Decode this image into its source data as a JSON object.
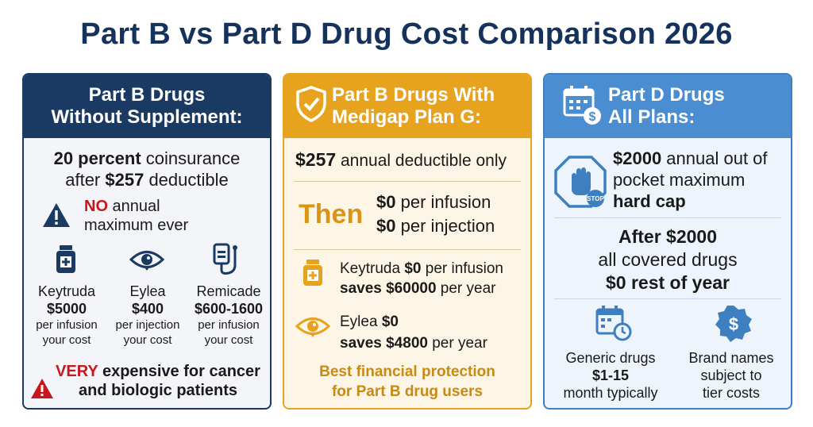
{
  "title": "Part B vs Part D Drug Cost Comparison 2026",
  "colors": {
    "navy": "#1b3a63",
    "gold": "#e8a31e",
    "blue": "#4a8dd0",
    "red": "#c8161d"
  },
  "card1": {
    "header_line1": "Part B Drugs",
    "header_line2": "Without Supplement:",
    "coins_bold": "20 percent",
    "coins_rest": " coinsurance",
    "after_text": "after ",
    "after_bold": "$257",
    "after_rest": " deductible",
    "no_bold": "NO",
    "no_rest": " annual",
    "maximum_text": "maximum ever",
    "drugs": [
      {
        "name": "Keytruda",
        "price": "$5000",
        "unit": "per infusion",
        "cost": "your cost",
        "icon": "medicine-bottle-icon"
      },
      {
        "name": "Eylea",
        "price": "$400",
        "unit": "per injection",
        "cost": "your cost",
        "icon": "eye-icon"
      },
      {
        "name": "Remicade",
        "price": "$600-1600",
        "unit": "per infusion",
        "cost": "your cost",
        "icon": "iv-bag-icon"
      }
    ],
    "warn_bold": "VERY",
    "warn_rest": " expensive for cancer",
    "warn_line2": "and biologic patients"
  },
  "card2": {
    "header_line1": "Part B Drugs With",
    "header_line2": "Medigap Plan G:",
    "deduct_bold": "$257",
    "deduct_rest": " annual deductible only",
    "then_text": "Then",
    "zero1_bold": "$0",
    "zero1_rest": " per infusion",
    "zero2_bold": "$0",
    "zero2_rest": " per injection",
    "key_name": "Keytruda ",
    "key_bold": "$0",
    "key_rest": " per infusion",
    "key_saves": "saves $60000",
    "key_saves_rest": " per year",
    "eylea_name": "Eylea ",
    "eylea_bold": "$0",
    "eylea_saves": "saves $4800",
    "eylea_saves_rest": " per year",
    "best_line1": "Best financial protection",
    "best_line2": "for Part B drug users"
  },
  "card3": {
    "header_line1": "Part D Drugs",
    "header_line2": "All Plans:",
    "max_bold": "$2000",
    "max_rest": " annual out of",
    "max_line2": "pocket maximum",
    "max_line3": "hard cap",
    "stop_label": "STOP",
    "after_line1": "After $2000",
    "after_line2": "all covered drugs",
    "after_line3": "$0 rest of year",
    "generic_line1": "Generic drugs",
    "generic_line2": "$1-15",
    "generic_line3": "month typically",
    "brand_line1": "Brand names",
    "brand_line2": "subject to",
    "brand_line3": "tier costs"
  }
}
